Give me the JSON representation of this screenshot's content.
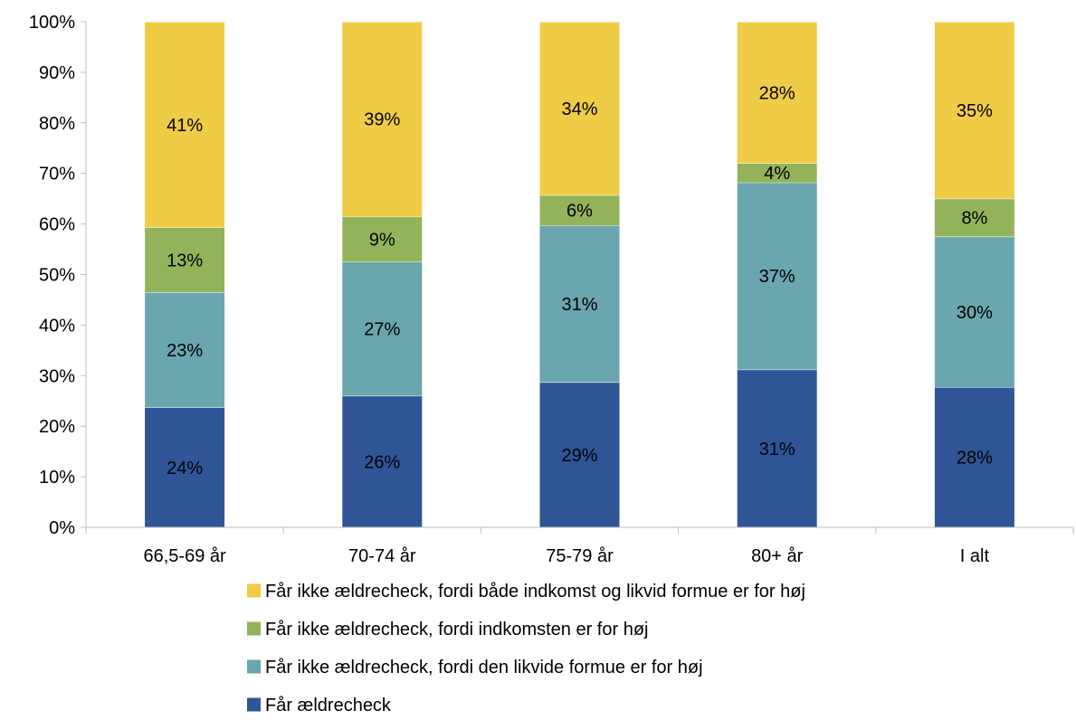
{
  "chart_data": {
    "type": "bar",
    "stacked": true,
    "title": "",
    "xlabel": "",
    "ylabel": "",
    "ylim": [
      0,
      100
    ],
    "y_tick_step": 10,
    "y_tick_labels": [
      "0%",
      "10%",
      "20%",
      "30%",
      "40%",
      "50%",
      "60%",
      "70%",
      "80%",
      "90%",
      "100%"
    ],
    "grid": false,
    "legend_position": "bottom",
    "categories": [
      "66,5-69 år",
      "70-74 år",
      "75-79 år",
      "80+ år",
      "I alt"
    ],
    "series": [
      {
        "name": "Får ældrecheck",
        "color": "#2F5597",
        "values": [
          23.7,
          26.0,
          28.7,
          31.2,
          27.7
        ],
        "labels": [
          "24%",
          "26%",
          "29%",
          "31%",
          "28%"
        ]
      },
      {
        "name": "Får ikke ældrecheck, fordi den likvide formue er for høj",
        "color": "#6AA6AE",
        "values": [
          22.8,
          26.5,
          31.0,
          37.0,
          29.8
        ],
        "labels": [
          "23%",
          "27%",
          "31%",
          "37%",
          "30%"
        ]
      },
      {
        "name": "Får ikke ældrecheck, fordi indkomsten er for høj",
        "color": "#93B35A",
        "values": [
          12.8,
          9.0,
          6.0,
          3.8,
          7.5
        ],
        "labels": [
          "13%",
          "9%",
          "6%",
          "4%",
          "8%"
        ]
      },
      {
        "name": "Får ikke ældrecheck, fordi både indkomst og likvid formue er for høj",
        "color": "#F0CB45",
        "values": [
          40.7,
          38.5,
          34.3,
          28.0,
          35.0
        ],
        "labels": [
          "41%",
          "39%",
          "34%",
          "28%",
          "35%"
        ]
      }
    ]
  }
}
